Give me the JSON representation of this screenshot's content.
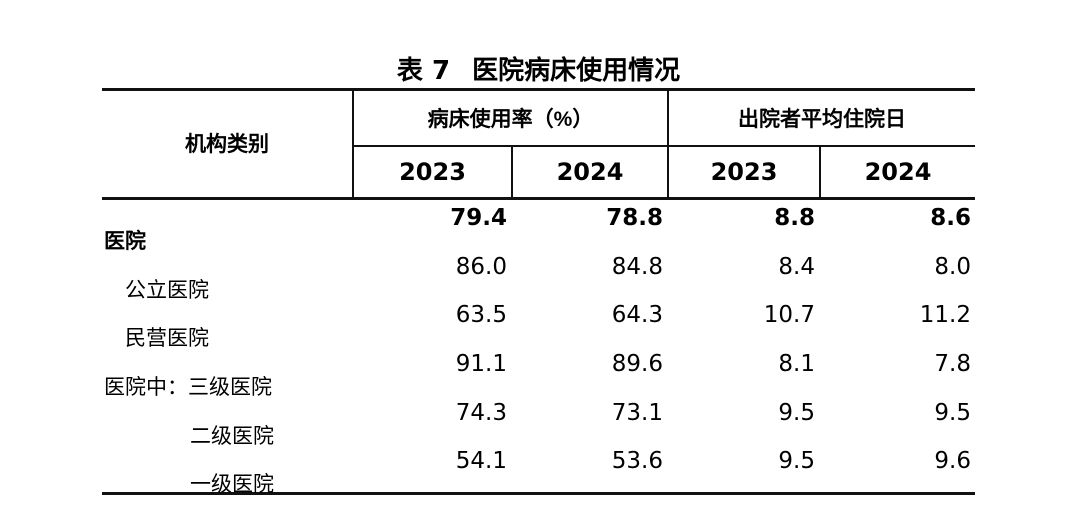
{
  "title": {
    "prefix": "表 7",
    "text": "医院病床使用情况"
  },
  "table": {
    "stub_header": "机构类别",
    "col_groups": [
      {
        "label": "病床使用率（%）",
        "years": [
          "2023",
          "2024"
        ]
      },
      {
        "label": "出院者平均住院日",
        "years": [
          "2023",
          "2024"
        ]
      }
    ],
    "rows": [
      {
        "label": "医院",
        "indent": 0,
        "bold": true,
        "values": [
          "79.4",
          "78.8",
          "8.8",
          "8.6"
        ]
      },
      {
        "label": "公立医院",
        "indent": 1,
        "bold": false,
        "values": [
          "86.0",
          "84.8",
          "8.4",
          "8.0"
        ]
      },
      {
        "label": "民营医院",
        "indent": 1,
        "bold": false,
        "values": [
          "63.5",
          "64.3",
          "10.7",
          "11.2"
        ]
      },
      {
        "label": "医院中：三级医院",
        "indent": 0,
        "bold": false,
        "values": [
          "91.1",
          "89.6",
          "8.1",
          "7.8"
        ]
      },
      {
        "label": "二级医院",
        "indent": 2,
        "bold": false,
        "values": [
          "74.3",
          "73.1",
          "9.5",
          "9.5"
        ]
      },
      {
        "label": "一级医院",
        "indent": 2,
        "bold": false,
        "values": [
          "54.1",
          "53.6",
          "9.5",
          "9.6"
        ]
      }
    ]
  },
  "colors": {
    "text": "#000000",
    "line": "#111111",
    "background": "#ffffff"
  }
}
